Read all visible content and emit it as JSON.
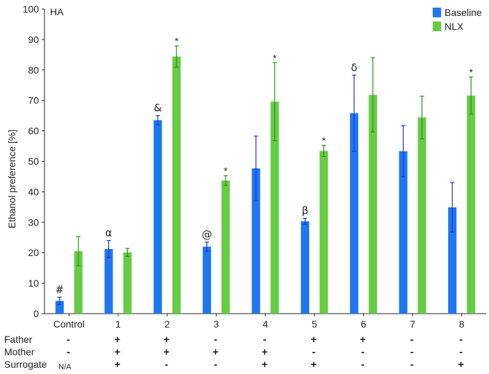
{
  "chart_data": {
    "type": "bar",
    "title": "HA",
    "ylabel": "Ethanol preference [%]",
    "ylim": [
      0,
      100
    ],
    "yticks": [
      0,
      10,
      20,
      30,
      40,
      50,
      60,
      70,
      80,
      90,
      100
    ],
    "categories": [
      "Control",
      "1",
      "2",
      "3",
      "4",
      "5",
      "6",
      "7",
      "8"
    ],
    "series": [
      {
        "name": "Baseline",
        "color": "#1f77f0",
        "values": [
          4.2,
          21.2,
          63.5,
          22.0,
          47.7,
          30.3,
          65.8,
          53.3,
          34.9
        ],
        "errors": [
          1.2,
          2.8,
          1.5,
          1.5,
          10.6,
          1.0,
          12.5,
          8.4,
          8.1
        ]
      },
      {
        "name": "NLX",
        "color": "#66cc44",
        "values": [
          20.5,
          20.1,
          84.4,
          43.7,
          69.6,
          53.4,
          71.8,
          64.4,
          71.6
        ],
        "errors": [
          4.8,
          1.3,
          3.5,
          1.6,
          12.8,
          1.8,
          12.2,
          7.0,
          6.1
        ]
      }
    ],
    "baseline_annotations": [
      "#",
      "α",
      "&",
      "@",
      "",
      "β",
      "δ",
      "",
      ""
    ],
    "nlx_annotations": [
      "",
      "",
      "*",
      "*",
      "*",
      "*",
      "",
      "",
      "*"
    ],
    "legend": "top-right",
    "grid": false,
    "table": {
      "rows": [
        {
          "label": "Father",
          "cells": [
            "-",
            "+",
            "+",
            "-",
            "-",
            "+",
            "+",
            "-",
            "-"
          ]
        },
        {
          "label": "Mother",
          "cells": [
            "-",
            "+",
            "+",
            "+",
            "+",
            "-",
            "-",
            "-",
            "-"
          ]
        },
        {
          "label": "Surrogate",
          "cells": [
            "N/A",
            "+",
            "-",
            "-",
            "+",
            "+",
            "-",
            "-",
            "+"
          ]
        }
      ]
    }
  }
}
